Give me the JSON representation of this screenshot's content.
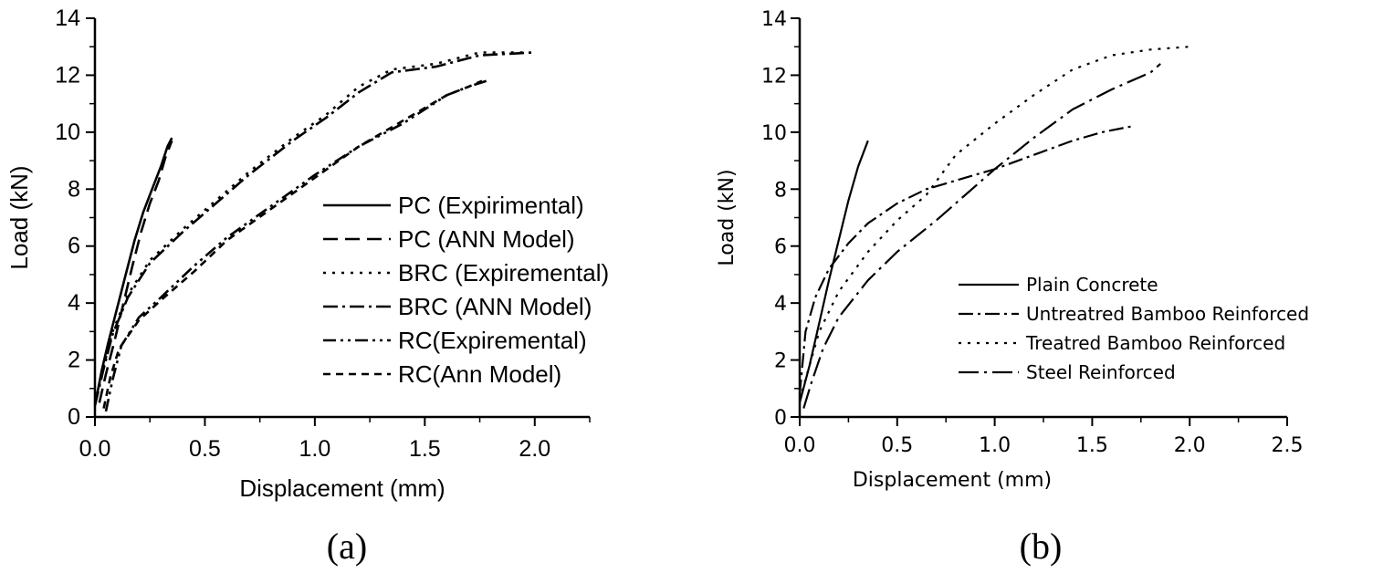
{
  "chart_data": [
    {
      "type": "line",
      "panel_label": "(a)",
      "xlabel": "Displacement (mm)",
      "ylabel": "Load (kN)",
      "xlim": [
        0,
        2.25
      ],
      "ylim": [
        0,
        14
      ],
      "xticks": [
        "0.0",
        "0.5",
        "1.0",
        "1.5",
        "2.0"
      ],
      "yticks": [
        "0",
        "2",
        "4",
        "6",
        "8",
        "10",
        "12",
        "14"
      ],
      "legend_position": "center-right",
      "series": [
        {
          "name": "PC (Expirimental)",
          "style": "solid",
          "x": [
            0.0,
            0.03,
            0.06,
            0.1,
            0.14,
            0.18,
            0.22,
            0.26,
            0.3,
            0.33,
            0.35
          ],
          "y": [
            0.4,
            1.6,
            2.6,
            3.8,
            5.0,
            6.2,
            7.2,
            8.0,
            8.8,
            9.5,
            9.8
          ]
        },
        {
          "name": "PC (ANN Model)",
          "style": "dash",
          "x": [
            0.02,
            0.05,
            0.09,
            0.13,
            0.17,
            0.21,
            0.25,
            0.29,
            0.32,
            0.35
          ],
          "y": [
            0.5,
            1.5,
            2.7,
            4.0,
            5.3,
            6.5,
            7.5,
            8.3,
            9.1,
            9.7
          ]
        },
        {
          "name": "BRC (Expiremental)",
          "style": "dot",
          "x": [
            0.0,
            0.04,
            0.08,
            0.15,
            0.25,
            0.4,
            0.55,
            0.7,
            0.9,
            1.05,
            1.2,
            1.35,
            1.55,
            1.75,
            1.98
          ],
          "y": [
            0.5,
            1.8,
            3.0,
            4.3,
            5.5,
            6.6,
            7.6,
            8.6,
            9.8,
            10.6,
            11.6,
            12.2,
            12.4,
            12.8,
            12.8
          ]
        },
        {
          "name": "BRC (ANN Model)",
          "style": "dashdot",
          "x": [
            0.0,
            0.04,
            0.08,
            0.15,
            0.25,
            0.4,
            0.55,
            0.7,
            0.9,
            1.05,
            1.2,
            1.35,
            1.55,
            1.75,
            2.0
          ],
          "y": [
            0.4,
            1.7,
            2.9,
            4.2,
            5.4,
            6.5,
            7.5,
            8.5,
            9.7,
            10.5,
            11.4,
            12.1,
            12.3,
            12.7,
            12.8
          ]
        },
        {
          "name": "RC(Expiremental)",
          "style": "dashdotdot",
          "x": [
            0.05,
            0.08,
            0.12,
            0.2,
            0.3,
            0.45,
            0.6,
            0.8,
            1.0,
            1.2,
            1.4,
            1.6,
            1.7,
            1.78
          ],
          "y": [
            0.2,
            1.3,
            2.5,
            3.5,
            4.2,
            5.3,
            6.3,
            7.4,
            8.5,
            9.5,
            10.3,
            11.3,
            11.6,
            11.8
          ]
        },
        {
          "name": "RC(Ann Model)",
          "style": "shortdash",
          "x": [
            0.04,
            0.07,
            0.11,
            0.2,
            0.3,
            0.45,
            0.6,
            0.8,
            1.0,
            1.2,
            1.4,
            1.6,
            1.7,
            1.76
          ],
          "y": [
            0.3,
            1.4,
            2.4,
            3.4,
            4.1,
            5.1,
            6.2,
            7.3,
            8.4,
            9.5,
            10.4,
            11.3,
            11.6,
            11.8
          ]
        }
      ]
    },
    {
      "type": "line",
      "panel_label": "(b)",
      "xlabel": "Displacement (mm)",
      "ylabel": "Load (kN)",
      "xlim": [
        0,
        2.5
      ],
      "ylim": [
        0,
        14
      ],
      "xticks": [
        "0.0",
        "0.5",
        "1.0",
        "1.5",
        "2.0",
        "2.5"
      ],
      "yticks": [
        "0",
        "2",
        "4",
        "6",
        "8",
        "10",
        "12",
        "14"
      ],
      "legend_position": "lower-right",
      "series": [
        {
          "name": "Plain Concrete",
          "style": "solid",
          "x": [
            0.0,
            0.05,
            0.1,
            0.15,
            0.2,
            0.25,
            0.3,
            0.35
          ],
          "y": [
            0.5,
            1.8,
            3.3,
            4.8,
            6.2,
            7.6,
            8.8,
            9.7
          ]
        },
        {
          "name": "Untreatred Bamboo Reinforced",
          "style": "dashdot",
          "x": [
            0.0,
            0.03,
            0.08,
            0.15,
            0.25,
            0.35,
            0.5,
            0.65,
            0.8,
            1.0,
            1.2,
            1.4,
            1.55,
            1.7
          ],
          "y": [
            0.8,
            3.0,
            4.2,
            5.2,
            6.1,
            6.8,
            7.5,
            8.0,
            8.3,
            8.7,
            9.2,
            9.7,
            10.0,
            10.2
          ]
        },
        {
          "name": "Treatred Bamboo Reinforced",
          "style": "dot",
          "x": [
            0.0,
            0.05,
            0.1,
            0.2,
            0.35,
            0.5,
            0.65,
            0.8,
            1.0,
            1.2,
            1.4,
            1.6,
            1.8,
            2.0
          ],
          "y": [
            0.6,
            1.8,
            3.0,
            4.4,
            5.8,
            6.9,
            7.8,
            9.2,
            10.3,
            11.3,
            12.2,
            12.7,
            12.9,
            13.0
          ]
        },
        {
          "name": "Steel Reinforced",
          "style": "longdashdot",
          "x": [
            0.02,
            0.06,
            0.12,
            0.2,
            0.35,
            0.5,
            0.7,
            0.9,
            1.0,
            1.2,
            1.4,
            1.6,
            1.8,
            1.85
          ],
          "y": [
            0.3,
            1.2,
            2.4,
            3.5,
            4.8,
            5.8,
            6.9,
            8.1,
            8.7,
            9.8,
            10.8,
            11.5,
            12.1,
            12.4
          ]
        }
      ]
    }
  ]
}
